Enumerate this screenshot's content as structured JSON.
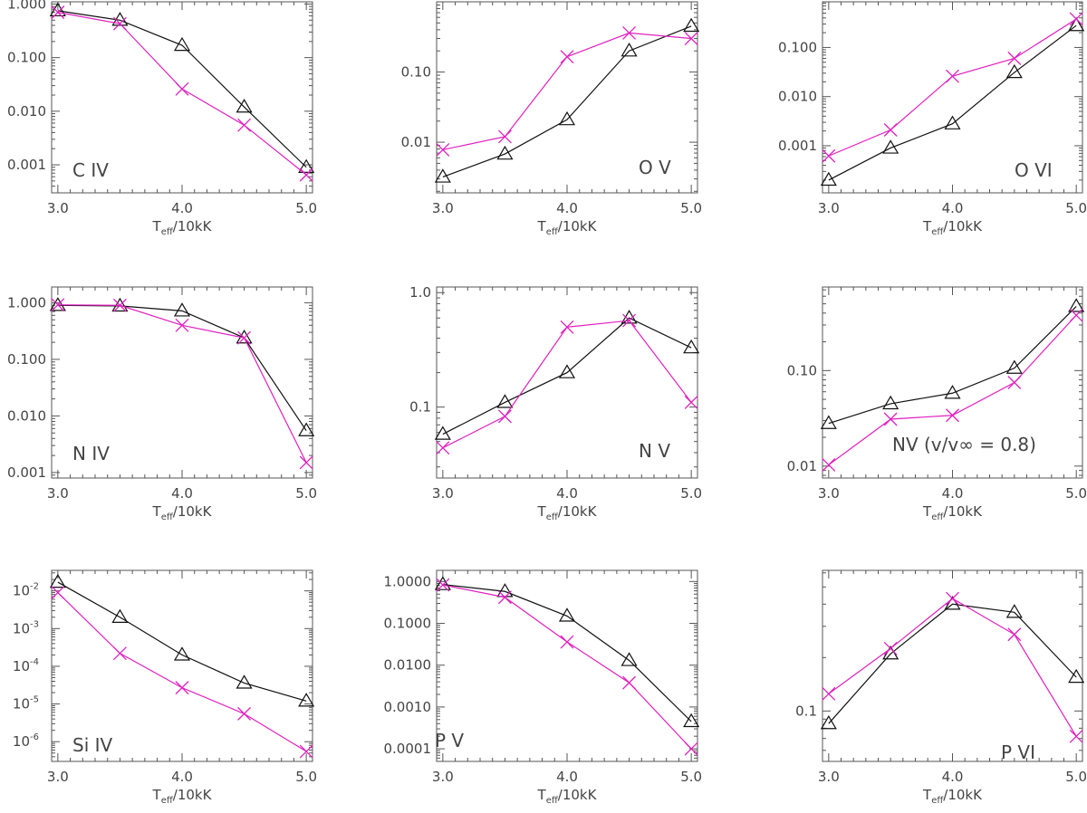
{
  "colors": {
    "model_a": "#111111",
    "model_b": "#e020c0",
    "axis": "#555555",
    "text": "#444444"
  },
  "markers": {
    "model_a": "triangle",
    "model_b": "x-cross"
  },
  "x_axis": {
    "label_main": "T",
    "label_sub": "eff",
    "label_rest": "/10kK",
    "ticks": [
      "3.0",
      "4.0",
      "5.0"
    ]
  },
  "chart_data": [
    {
      "type": "line",
      "title": "C IV",
      "yscale": "log",
      "xlim": [
        2.95,
        5.05
      ],
      "ylim": [
        0.0003,
        1.1
      ],
      "x": [
        3.0,
        3.5,
        4.0,
        4.5,
        5.0
      ],
      "yticks": [
        1,
        0.1,
        0.01,
        0.001
      ],
      "yticklabels": [
        "1.000",
        "0.100",
        "0.010",
        "0.001"
      ],
      "series": [
        {
          "values": [
            0.75,
            0.5,
            0.17,
            0.012,
            0.0009
          ]
        },
        {
          "values": [
            0.7,
            0.43,
            0.026,
            0.0055,
            0.00065
          ]
        }
      ]
    },
    {
      "type": "line",
      "title": "O V",
      "yscale": "log",
      "xlim": [
        2.95,
        5.05
      ],
      "ylim": [
        0.0019,
        1.0
      ],
      "x": [
        3.0,
        3.5,
        4.0,
        4.5,
        5.0
      ],
      "yticks": [
        0.1,
        0.01
      ],
      "yticklabels": [
        "0.10",
        "0.01"
      ],
      "series": [
        {
          "values": [
            0.0032,
            0.0068,
            0.021,
            0.2,
            0.45
          ]
        },
        {
          "values": [
            0.0078,
            0.012,
            0.165,
            0.36,
            0.3
          ]
        }
      ]
    },
    {
      "type": "line",
      "title": "O VI",
      "yscale": "log",
      "xlim": [
        2.95,
        5.05
      ],
      "ylim": [
        0.00011,
        0.85
      ],
      "x": [
        3.0,
        3.5,
        4.0,
        4.5,
        5.0
      ],
      "yticks": [
        0.1,
        0.01,
        0.001
      ],
      "yticklabels": [
        "0.100",
        "0.010",
        "0.001"
      ],
      "series": [
        {
          "values": [
            0.0002,
            0.0009,
            0.0028,
            0.031,
            0.28
          ]
        },
        {
          "values": [
            0.00062,
            0.0021,
            0.026,
            0.06,
            0.38
          ]
        }
      ]
    },
    {
      "type": "line",
      "title": "N IV",
      "yscale": "log",
      "xlim": [
        2.95,
        5.05
      ],
      "ylim": [
        0.0008,
        1.9
      ],
      "x": [
        3.0,
        3.5,
        4.0,
        4.5,
        5.0
      ],
      "yticks": [
        1,
        0.1,
        0.01,
        0.001
      ],
      "yticklabels": [
        "1.000",
        "0.100",
        "0.010",
        "0.001"
      ],
      "series": [
        {
          "values": [
            0.9,
            0.88,
            0.72,
            0.24,
            0.0055
          ]
        },
        {
          "values": [
            0.92,
            0.9,
            0.4,
            0.24,
            0.0015
          ]
        }
      ]
    },
    {
      "type": "line",
      "title": "N V",
      "yscale": "log",
      "xlim": [
        2.95,
        5.05
      ],
      "ylim": [
        0.024,
        1.12
      ],
      "x": [
        3.0,
        3.5,
        4.0,
        4.5,
        5.0
      ],
      "yticks": [
        1,
        0.1
      ],
      "yticklabels": [
        "1.0",
        "0.1"
      ],
      "series": [
        {
          "values": [
            0.058,
            0.11,
            0.2,
            0.6,
            0.33
          ]
        },
        {
          "values": [
            0.044,
            0.083,
            0.5,
            0.57,
            0.11
          ]
        }
      ]
    },
    {
      "type": "line",
      "title": "NV (v/v∞ = 0.8)",
      "yscale": "log",
      "xlim": [
        2.95,
        5.05
      ],
      "ylim": [
        0.0075,
        0.75
      ],
      "x": [
        3.0,
        3.5,
        4.0,
        4.5,
        5.0
      ],
      "yticks": [
        0.1,
        0.01
      ],
      "yticklabels": [
        "0.10",
        "0.01"
      ],
      "series": [
        {
          "values": [
            0.028,
            0.045,
            0.058,
            0.106,
            0.47
          ]
        },
        {
          "values": [
            0.0103,
            0.031,
            0.034,
            0.075,
            0.38
          ]
        }
      ]
    },
    {
      "type": "line",
      "title": "Si IV",
      "yscale": "log",
      "xlim": [
        2.95,
        5.05
      ],
      "ylim": [
        3e-07,
        0.035
      ],
      "x": [
        3.0,
        3.5,
        4.0,
        4.5,
        5.0
      ],
      "yticks": [
        0.01,
        0.001,
        0.0001,
        1e-05,
        1e-06
      ],
      "yticklabels": [
        [
          "10",
          "-2"
        ],
        [
          "10",
          "-3"
        ],
        [
          "10",
          "-4"
        ],
        [
          "10",
          "-5"
        ],
        [
          "10",
          "-6"
        ]
      ],
      "series": [
        {
          "values": [
            0.017,
            0.002,
            0.0002,
            3.6e-05,
            1.2e-05
          ]
        },
        {
          "values": [
            0.009,
            0.00022,
            2.7e-05,
            5.5e-06,
            5.5e-07
          ]
        }
      ]
    },
    {
      "type": "line",
      "title": "P V",
      "yscale": "log",
      "xlim": [
        2.95,
        5.05
      ],
      "ylim": [
        5e-05,
        1.85
      ],
      "x": [
        3.0,
        3.5,
        4.0,
        4.5,
        5.0
      ],
      "yticks": [
        1,
        0.1,
        0.01,
        0.001,
        0.0001
      ],
      "yticklabels": [
        "1.0000",
        "0.1000",
        "0.0100",
        "0.0010",
        "0.0001"
      ],
      "series": [
        {
          "values": [
            0.85,
            0.58,
            0.15,
            0.013,
            0.00045
          ]
        },
        {
          "values": [
            0.83,
            0.42,
            0.036,
            0.0038,
            0.0001
          ]
        }
      ]
    },
    {
      "type": "line",
      "title": "P VI",
      "yscale": "log",
      "xlim": [
        2.95,
        5.05
      ],
      "ylim": [
        0.052,
        0.62
      ],
      "x": [
        3.0,
        3.5,
        4.0,
        4.5,
        5.0
      ],
      "yticks": [
        0.1
      ],
      "yticklabels": [
        "0.1"
      ],
      "series": [
        {
          "values": [
            0.085,
            0.21,
            0.4,
            0.36,
            0.155
          ]
        },
        {
          "values": [
            0.125,
            0.225,
            0.43,
            0.27,
            0.072
          ]
        }
      ]
    }
  ]
}
